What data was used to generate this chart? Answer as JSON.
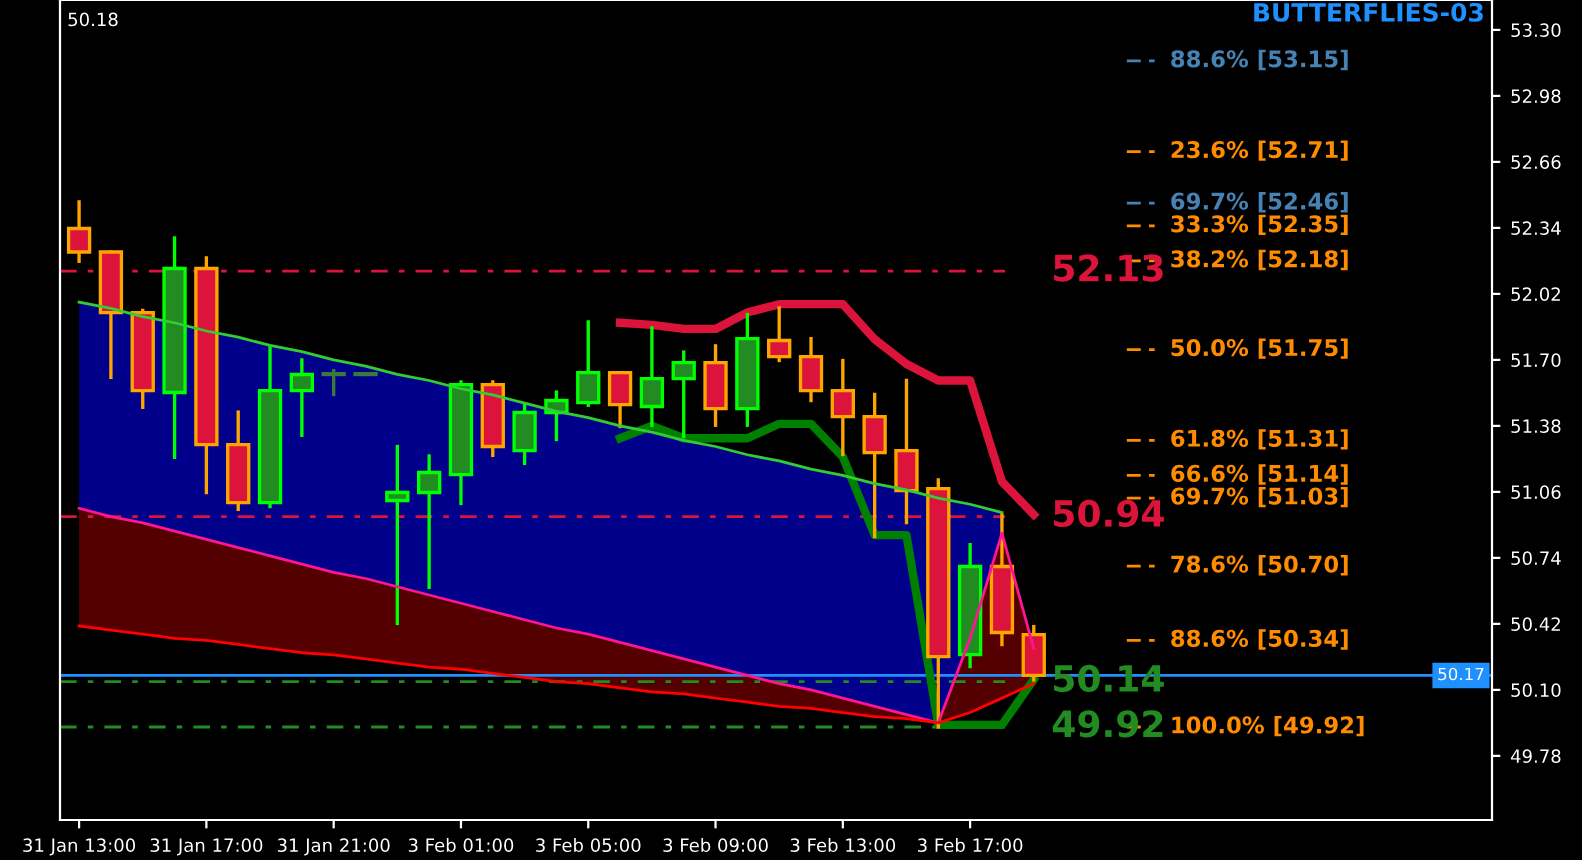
{
  "chart_data": {
    "type": "candlestick",
    "categories": [
      "31 Jan 13:00",
      null,
      null,
      null,
      "31 Jan 17:00",
      null,
      null,
      null,
      "31 Jan 21:00",
      null,
      null,
      null,
      "3 Feb 01:00",
      null,
      null,
      null,
      "3 Feb 05:00",
      null,
      null,
      null,
      "3 Feb 09:00",
      null,
      null,
      null,
      "3 Feb 13:00",
      null,
      null,
      null,
      "3 Feb 17:00",
      null,
      null
    ],
    "ohlc": [
      [
        52.337,
        52.466,
        52.178,
        52.223
      ],
      [
        52.223,
        52.223,
        51.615,
        51.929
      ],
      [
        51.929,
        51.94,
        51.47,
        51.551
      ],
      [
        51.542,
        52.291,
        51.227,
        52.143
      ],
      [
        52.143,
        52.194,
        51.057,
        51.289
      ],
      [
        51.289,
        51.447,
        50.975,
        51.008
      ],
      [
        51.008,
        51.761,
        50.989,
        51.551
      ],
      [
        51.551,
        51.7,
        51.334,
        51.629
      ],
      [
        51.629,
        51.648,
        51.532,
        51.629
      ],
      [
        51.629,
        51.629,
        51.629,
        51.629
      ],
      [
        51.018,
        51.28,
        50.422,
        51.057
      ],
      [
        51.057,
        51.234,
        50.597,
        51.154
      ],
      [
        51.144,
        51.593,
        51.004,
        51.58
      ],
      [
        51.58,
        51.593,
        51.237,
        51.28
      ],
      [
        51.26,
        51.486,
        51.198,
        51.445
      ],
      [
        51.445,
        51.544,
        51.314,
        51.503
      ],
      [
        51.493,
        51.884,
        51.48,
        51.638
      ],
      [
        51.638,
        51.638,
        51.377,
        51.483
      ],
      [
        51.474,
        51.855,
        51.383,
        51.609
      ],
      [
        51.609,
        51.738,
        51.328,
        51.687
      ],
      [
        51.687,
        51.768,
        51.383,
        51.464
      ],
      [
        51.464,
        51.92,
        51.383,
        51.803
      ],
      [
        51.794,
        51.952,
        51.697,
        51.716
      ],
      [
        51.716,
        51.803,
        51.503,
        51.551
      ],
      [
        51.551,
        51.697,
        51.241,
        51.425
      ],
      [
        51.425,
        51.532,
        50.843,
        51.25
      ],
      [
        51.26,
        51.6,
        50.911,
        51.066
      ],
      [
        51.076,
        51.118,
        49.92,
        50.261
      ],
      [
        50.271,
        50.804,
        50.213,
        50.698
      ],
      [
        50.698,
        50.95,
        50.32,
        50.378
      ],
      [
        50.368,
        50.407,
        50.148,
        50.17
      ]
    ],
    "colors": [
      "#dc143c",
      "#dc143c",
      "#dc143c",
      "#228b22",
      "#dc143c",
      "#dc143c",
      "#228b22",
      "#228b22",
      "#3c7a3c",
      "#3c7a3c",
      "#228b22",
      "#228b22",
      "#228b22",
      "#dc143c",
      "#228b22",
      "#228b22",
      "#228b22",
      "#dc143c",
      "#228b22",
      "#228b22",
      "#dc143c",
      "#228b22",
      "#dc143c",
      "#dc143c",
      "#dc143c",
      "#dc143c",
      "#dc143c",
      "#dc143c",
      "#228b22",
      "#dc143c",
      "#dc143c"
    ],
    "series": [
      {
        "type": "line",
        "color": "#32cd32",
        "values": [
          51.98,
          51.95,
          51.91,
          51.88,
          51.84,
          51.81,
          51.77,
          51.74,
          51.7,
          51.67,
          51.63,
          51.6,
          51.56,
          51.53,
          51.49,
          51.45,
          51.42,
          51.38,
          51.35,
          51.31,
          51.28,
          51.24,
          51.21,
          51.17,
          51.14,
          51.1,
          51.07,
          51.03,
          51.0,
          50.96,
          null
        ]
      },
      {
        "type": "line",
        "color": "#ff1493",
        "values": [
          50.98,
          50.94,
          50.91,
          50.87,
          50.83,
          50.79,
          50.75,
          50.71,
          50.67,
          50.64,
          50.6,
          50.56,
          50.52,
          50.48,
          50.44,
          50.4,
          50.37,
          50.33,
          50.29,
          50.25,
          50.21,
          50.17,
          50.13,
          50.1,
          50.06,
          50.02,
          49.98,
          49.94,
          50.35,
          50.86,
          50.3
        ]
      },
      {
        "type": "line",
        "color": "#ff0000",
        "values": [
          50.41,
          50.39,
          50.37,
          50.35,
          50.34,
          50.32,
          50.3,
          50.28,
          50.27,
          50.25,
          50.23,
          50.21,
          50.2,
          50.18,
          50.16,
          50.14,
          50.13,
          50.11,
          50.09,
          50.08,
          50.06,
          50.04,
          50.02,
          50.01,
          49.99,
          49.97,
          49.96,
          49.94,
          49.99,
          50.06,
          50.13
        ]
      },
      {
        "type": "line",
        "color": "#dc143c",
        "values": [
          null,
          null,
          null,
          null,
          null,
          null,
          null,
          null,
          null,
          null,
          null,
          null,
          null,
          null,
          null,
          null,
          null,
          51.88,
          51.87,
          51.85,
          51.85,
          51.93,
          51.97,
          51.97,
          51.97,
          51.8,
          51.68,
          51.6,
          51.6,
          51.11,
          50.95
        ]
      },
      {
        "type": "line",
        "color": "#008000",
        "values": [
          null,
          null,
          null,
          null,
          null,
          null,
          null,
          null,
          null,
          null,
          null,
          null,
          null,
          null,
          null,
          null,
          null,
          51.32,
          51.38,
          51.32,
          51.32,
          51.32,
          51.39,
          51.39,
          51.23,
          50.85,
          50.85,
          49.93,
          49.93,
          49.93,
          50.15
        ]
      }
    ],
    "ref_lines": [
      {
        "axis": "y",
        "value": 52.13,
        "label": "52.13",
        "color": "#dc143c",
        "line_style": "dashed"
      },
      {
        "axis": "y",
        "value": 50.94,
        "label": "50.94",
        "color": "#dc143c",
        "line_style": "dashed"
      },
      {
        "axis": "y",
        "value": 50.14,
        "label": "50.14",
        "color": "#228b22",
        "line_style": "dashed"
      },
      {
        "axis": "y",
        "value": 49.92,
        "label": "49.92",
        "color": "#228b22",
        "line_style": "dashed"
      },
      {
        "axis": "y",
        "value": 50.17,
        "label": "50.17",
        "color": "#1e90ff",
        "line_style": "solid"
      },
      {
        "axis": "y",
        "value": 53.15,
        "label": "88.6% [53.15]",
        "color": "#4682b4",
        "line_style": "dotted"
      },
      {
        "axis": "y",
        "value": 52.71,
        "label": "23.6% [52.71]",
        "color": "#ff8c00",
        "line_style": "dotted"
      },
      {
        "axis": "y",
        "value": 52.46,
        "label": "69.7% [52.46]",
        "color": "#4682b4",
        "line_style": "dotted"
      },
      {
        "axis": "y",
        "value": 52.35,
        "label": "33.3% [52.35]",
        "color": "#ff8c00",
        "line_style": "dotted"
      },
      {
        "axis": "y",
        "value": 52.18,
        "label": "38.2% [52.18]",
        "color": "#ff8c00",
        "line_style": "dotted"
      },
      {
        "axis": "y",
        "value": 51.75,
        "label": "50.0% [51.75]",
        "color": "#ff8c00",
        "line_style": "dotted"
      },
      {
        "axis": "y",
        "value": 51.31,
        "label": "61.8% [51.31]",
        "color": "#ff8c00",
        "line_style": "dotted"
      },
      {
        "axis": "y",
        "value": 51.14,
        "label": "66.6% [51.14]",
        "color": "#ff8c00",
        "line_style": "dotted"
      },
      {
        "axis": "y",
        "value": 51.03,
        "label": "69.7% [51.03]",
        "color": "#ff8c00",
        "line_style": "dotted"
      },
      {
        "axis": "y",
        "value": 50.7,
        "label": "78.6% [50.70]",
        "color": "#ff8c00",
        "line_style": "dotted"
      },
      {
        "axis": "y",
        "value": 50.34,
        "label": "88.6% [50.34]",
        "color": "#ff8c00",
        "line_style": "dotted"
      },
      {
        "axis": "y",
        "value": 49.92,
        "label": "100.0% [49.92]",
        "color": "#ff8c00",
        "line_style": "dotted"
      }
    ],
    "annotations": [
      "50.18",
      "BUTTERFLIES-03"
    ],
    "ylim": [
      49.469,
      53.445
    ],
    "yticks": [
      {
        "value": 53.3,
        "label": "53.30"
      },
      52.98,
      52.66,
      52.34,
      52.02,
      {
        "value": 51.7,
        "label": "51.70"
      },
      51.38,
      51.06,
      50.74,
      50.42,
      {
        "value": 50.1,
        "label": "50.10"
      },
      49.78
    ]
  }
}
